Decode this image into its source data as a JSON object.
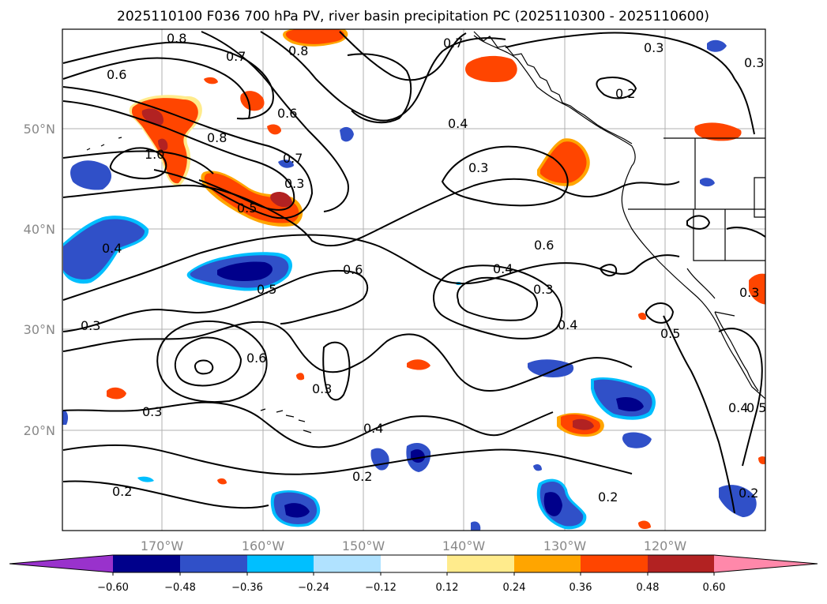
{
  "title": "2025110100 F036 700 hPa PV, river basin precipitation PC (2025110300 - 2025110600)",
  "axes": {
    "lon_labels": [
      "170°W",
      "160°W",
      "150°W",
      "140°W",
      "130°W",
      "120°W"
    ],
    "lat_labels": [
      "50°N",
      "40°N",
      "30°N",
      "20°N"
    ]
  },
  "contour_labels": [
    {
      "id": "c1",
      "text": "0.8"
    },
    {
      "id": "c2",
      "text": "0.6"
    },
    {
      "id": "c3",
      "text": "0.7"
    },
    {
      "id": "c4",
      "text": "0.8"
    },
    {
      "id": "c5",
      "text": "0.7"
    },
    {
      "id": "c6",
      "text": "0.3"
    },
    {
      "id": "c7",
      "text": "0.3"
    },
    {
      "id": "c8",
      "text": "0.2"
    },
    {
      "id": "c9",
      "text": "0.6"
    },
    {
      "id": "c10",
      "text": "0.4"
    },
    {
      "id": "c11",
      "text": "0.8"
    },
    {
      "id": "c12",
      "text": "1.0"
    },
    {
      "id": "c13",
      "text": "0.7"
    },
    {
      "id": "c14",
      "text": "0.3"
    },
    {
      "id": "c15",
      "text": "0.5"
    },
    {
      "id": "c16",
      "text": "0.3"
    },
    {
      "id": "c17",
      "text": "0.4"
    },
    {
      "id": "c18",
      "text": "0.6"
    },
    {
      "id": "c19",
      "text": "0.6"
    },
    {
      "id": "c20",
      "text": "0.4"
    },
    {
      "id": "c21",
      "text": "0.3"
    },
    {
      "id": "c22",
      "text": "0.5"
    },
    {
      "id": "c23",
      "text": "0.4"
    },
    {
      "id": "c24",
      "text": "0.5"
    },
    {
      "id": "c25",
      "text": "0.3"
    },
    {
      "id": "c26",
      "text": "0.6"
    },
    {
      "id": "c27",
      "text": "0.3"
    },
    {
      "id": "c28",
      "text": "0.3"
    },
    {
      "id": "c29",
      "text": "0.4"
    },
    {
      "id": "c30",
      "text": "0.2"
    },
    {
      "id": "c31",
      "text": "0.2"
    },
    {
      "id": "c32",
      "text": "0.2"
    },
    {
      "id": "c33",
      "text": "0.2"
    },
    {
      "id": "c34",
      "text": "0.4"
    },
    {
      "id": "c35",
      "text": "0.5"
    },
    {
      "id": "c36",
      "text": "0.3"
    }
  ],
  "colorbar": {
    "ticks": [
      "−0.60",
      "−0.48",
      "−0.36",
      "−0.24",
      "−0.12",
      "0.12",
      "0.24",
      "0.36",
      "0.48",
      "0.60"
    ],
    "colors": [
      "#9932cc",
      "#00008b",
      "#3050c8",
      "#00bfff",
      "#b0e2ff",
      "#ffffff",
      "#ffeb8c",
      "#ffa500",
      "#ff4500",
      "#b22222",
      "#ff88aa"
    ]
  }
}
